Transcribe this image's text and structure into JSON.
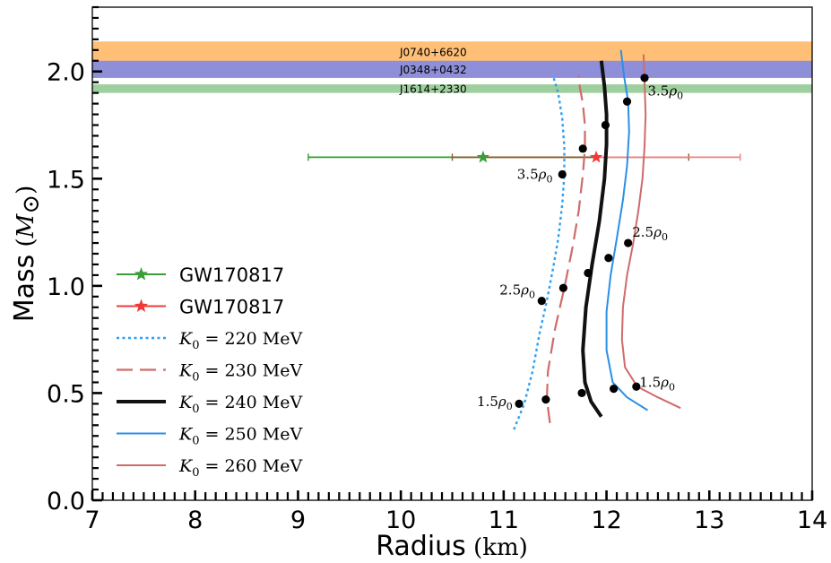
{
  "chart_data": {
    "type": "line",
    "xlabel": "Radius",
    "xlabel_unit": "(km)",
    "ylabel": "Mass",
    "ylabel_unit": "(M⊙)",
    "xlim": [
      7,
      14
    ],
    "ylim": [
      0.0,
      2.3
    ],
    "xticks": [
      7,
      8,
      9,
      10,
      11,
      12,
      13,
      14
    ],
    "xtick_labels": [
      "7",
      "8",
      "9",
      "10",
      "11",
      "12",
      "13",
      "14"
    ],
    "yticks": [
      0.0,
      0.5,
      1.0,
      1.5,
      2.0
    ],
    "ytick_labels": [
      "0.0",
      "0.5",
      "1.0",
      "1.5",
      "2.0"
    ],
    "grid": false,
    "legend_position": "left",
    "bands": [
      {
        "label": "J0740+6620",
        "ymin": 2.04,
        "ymax": 2.14,
        "color": "#ffbf76"
      },
      {
        "label": "J0348+0432",
        "ymin": 1.97,
        "ymax": 2.05,
        "color": "#8e8ed9"
      },
      {
        "label": "J1614+2330",
        "ymin": 1.9,
        "ymax": 1.94,
        "color": "#9fcf9f"
      }
    ],
    "gw_points": [
      {
        "legend": "GW170817",
        "x": 10.8,
        "y": 1.6,
        "xerr": [
          9.1,
          12.8
        ],
        "color": "#3a9e3a",
        "errcolor_left": "#2ca02c",
        "errcolor_right": "#8a5a2a"
      },
      {
        "legend": "GW170817",
        "x": 11.9,
        "y": 1.6,
        "xerr": [
          10.5,
          13.3
        ],
        "color": "#f03a3a",
        "errcolor_left": "#8a5a2a",
        "errcolor_right": "#f08080"
      }
    ],
    "series": [
      {
        "name": "K_0 = 220 MeV",
        "legend_prefix": "K",
        "legend_sub": "0",
        "legend_value": " = 220 MeV",
        "color": "#2b9ff5",
        "style": "dotted",
        "width": 2.4,
        "x": [
          11.1,
          11.2,
          11.28,
          11.35,
          11.42,
          11.48,
          11.53,
          11.57,
          11.59,
          11.59,
          11.57,
          11.53,
          11.48
        ],
        "y": [
          0.33,
          0.45,
          0.6,
          0.78,
          0.93,
          1.08,
          1.22,
          1.38,
          1.52,
          1.65,
          1.78,
          1.9,
          1.98
        ],
        "markers": [
          [
            11.15,
            0.45
          ],
          [
            11.37,
            0.93
          ],
          [
            11.57,
            1.52
          ]
        ]
      },
      {
        "name": "K_0 = 230 MeV",
        "legend_prefix": "K",
        "legend_sub": "0",
        "legend_value": " = 230 MeV",
        "color": "#cf6b6b",
        "style": "dashed",
        "width": 2.2,
        "x": [
          11.45,
          11.42,
          11.43,
          11.5,
          11.59,
          11.67,
          11.73,
          11.77,
          11.79,
          11.79,
          11.77,
          11.74,
          11.73
        ],
        "y": [
          0.36,
          0.47,
          0.6,
          0.8,
          0.99,
          1.18,
          1.35,
          1.52,
          1.64,
          1.75,
          1.85,
          1.93,
          1.98
        ],
        "markers": [
          [
            11.41,
            0.47
          ],
          [
            11.58,
            0.99
          ],
          [
            11.77,
            1.64
          ]
        ]
      },
      {
        "name": "K_0 = 240 MeV",
        "legend_prefix": "K",
        "legend_sub": "0",
        "legend_value": " = 240 MeV",
        "color": "#111111",
        "style": "solid",
        "width": 4,
        "x": [
          11.95,
          11.85,
          11.79,
          11.77,
          11.8,
          11.86,
          11.93,
          11.98,
          12.0,
          12.0,
          11.98,
          11.95
        ],
        "y": [
          0.39,
          0.46,
          0.55,
          0.7,
          0.9,
          1.1,
          1.3,
          1.5,
          1.66,
          1.8,
          1.93,
          2.05
        ],
        "markers": [
          [
            11.76,
            0.5
          ],
          [
            11.82,
            1.06
          ],
          [
            11.99,
            1.75
          ]
        ]
      },
      {
        "name": "K_0 = 250 MeV",
        "legend_prefix": "K",
        "legend_sub": "0",
        "legend_value": " = 250 MeV",
        "color": "#2b8fe6",
        "style": "solid",
        "width": 2,
        "x": [
          12.4,
          12.2,
          12.06,
          12.0,
          12.0,
          12.04,
          12.1,
          12.16,
          12.2,
          12.22,
          12.21,
          12.17,
          12.14
        ],
        "y": [
          0.42,
          0.48,
          0.55,
          0.7,
          0.88,
          1.05,
          1.22,
          1.4,
          1.56,
          1.72,
          1.86,
          1.98,
          2.1
        ],
        "markers": [
          [
            12.07,
            0.52
          ],
          [
            12.02,
            1.13
          ],
          [
            12.2,
            1.86
          ]
        ]
      },
      {
        "name": "K_0 = 260 MeV",
        "legend_prefix": "K",
        "legend_sub": "0",
        "legend_value": " = 260 MeV",
        "color": "#cf6b6b",
        "style": "solid",
        "width": 2,
        "x": [
          12.72,
          12.5,
          12.3,
          12.18,
          12.15,
          12.16,
          12.2,
          12.26,
          12.31,
          12.35,
          12.37,
          12.38,
          12.37,
          12.36
        ],
        "y": [
          0.43,
          0.48,
          0.53,
          0.62,
          0.75,
          0.9,
          1.05,
          1.2,
          1.35,
          1.5,
          1.65,
          1.8,
          1.95,
          2.08
        ],
        "markers": [
          [
            12.29,
            0.53
          ],
          [
            12.21,
            1.2
          ],
          [
            12.37,
            1.97
          ]
        ]
      }
    ],
    "annotations": [
      {
        "prefix": "1.5",
        "sym": "ρ",
        "sub": "0",
        "x": 10.74,
        "y": 0.46
      },
      {
        "prefix": "2.5",
        "sym": "ρ",
        "sub": "0",
        "x": 10.96,
        "y": 0.98
      },
      {
        "prefix": "3.5",
        "sym": "ρ",
        "sub": "0",
        "x": 11.13,
        "y": 1.52
      },
      {
        "prefix": "1.5",
        "sym": "ρ",
        "sub": "0",
        "x": 12.32,
        "y": 0.55
      },
      {
        "prefix": "2.5",
        "sym": "ρ",
        "sub": "0",
        "x": 12.25,
        "y": 1.25
      },
      {
        "prefix": "3.5",
        "sym": "ρ",
        "sub": "0",
        "x": 12.4,
        "y": 1.91
      }
    ]
  }
}
